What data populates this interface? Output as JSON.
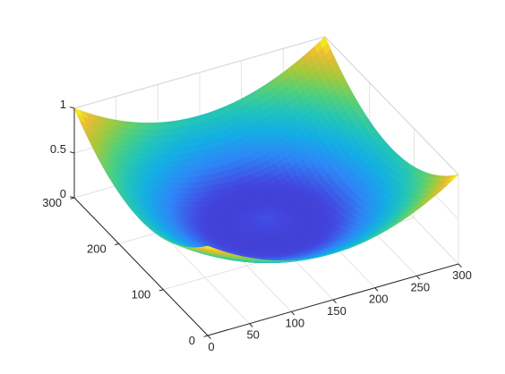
{
  "chart_data": {
    "type": "surface",
    "title": "",
    "xlabel": "",
    "ylabel": "",
    "zlabel": "",
    "xlim": [
      0,
      300
    ],
    "ylim": [
      0,
      300
    ],
    "zlim": [
      0,
      1
    ],
    "x_ticks": [
      "0",
      "50",
      "100",
      "150",
      "200",
      "250",
      "300"
    ],
    "y_ticks": [
      "0",
      "100",
      "200",
      "300"
    ],
    "z_ticks": [
      "0",
      "0.5",
      "1"
    ],
    "x_tick_values": [
      0,
      50,
      100,
      150,
      200,
      250,
      300
    ],
    "y_tick_values": [
      0,
      100,
      200,
      300
    ],
    "z_tick_values": [
      0,
      0.5,
      1
    ],
    "grid": true,
    "colormap": "parula",
    "colormap_stops": [
      "#3e26a8",
      "#4347e0",
      "#2e87f7",
      "#13aee5",
      "#22c4ba",
      "#52d07a",
      "#a5c93b",
      "#e9bb36",
      "#f9fb15"
    ],
    "surface": {
      "description_of_shape": "bowl",
      "corner_values": {
        "x0_y0": 1.0,
        "x300_y0": 1.0,
        "x0_y300": 1.0,
        "x300_y300": 1.0
      },
      "center_value": 0.0,
      "inner_peak_value": 0.15
    }
  }
}
